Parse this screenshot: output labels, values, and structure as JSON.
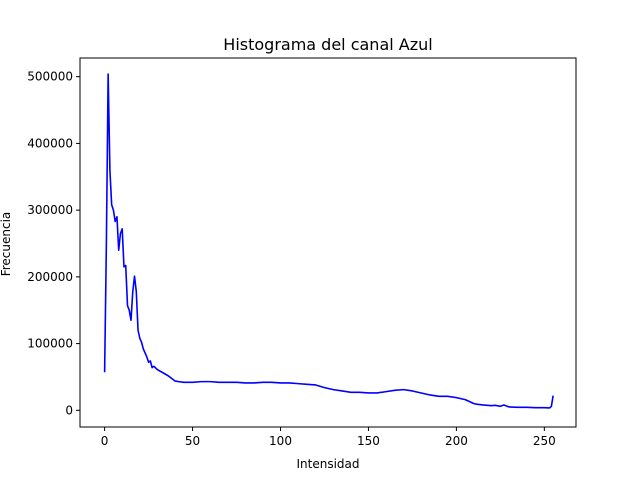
{
  "chart_data": {
    "type": "line",
    "title": "Histograma del canal Azul",
    "xlabel": "Intensidad",
    "ylabel": "Frecuencia",
    "xlim": [
      -14,
      268
    ],
    "ylim": [
      -25000,
      528000
    ],
    "grid": false,
    "xticks": [
      0,
      50,
      100,
      150,
      200,
      250
    ],
    "yticks": [
      0,
      100000,
      200000,
      300000,
      400000,
      500000
    ],
    "xtick_labels": [
      "0",
      "50",
      "100",
      "150",
      "200",
      "250"
    ],
    "ytick_labels": [
      "0",
      "100000",
      "200000",
      "300000",
      "400000",
      "500000"
    ],
    "series": [
      {
        "color": "#0000ff",
        "x": [
          0,
          1,
          2,
          3,
          4,
          5,
          6,
          7,
          8,
          9,
          10,
          11,
          12,
          13,
          14,
          15,
          16,
          17,
          18,
          19,
          20,
          21,
          22,
          23,
          24,
          25,
          26,
          27,
          28,
          30,
          32,
          34,
          36,
          38,
          40,
          42,
          45,
          50,
          55,
          60,
          65,
          70,
          75,
          80,
          85,
          90,
          95,
          100,
          105,
          110,
          115,
          120,
          125,
          130,
          135,
          140,
          145,
          150,
          155,
          160,
          165,
          170,
          175,
          180,
          185,
          190,
          195,
          200,
          205,
          210,
          212,
          215,
          220,
          222,
          225,
          227,
          230,
          235,
          240,
          245,
          250,
          253,
          254,
          255
        ],
        "values": [
          57000,
          250000,
          504000,
          360000,
          308000,
          300000,
          283000,
          290000,
          240000,
          265000,
          272000,
          215000,
          217000,
          157000,
          150000,
          135000,
          178000,
          201000,
          178000,
          120000,
          108000,
          102000,
          92000,
          86000,
          80000,
          72000,
          74000,
          64000,
          66000,
          61000,
          58000,
          55000,
          52000,
          48000,
          44000,
          43000,
          42000,
          42000,
          43000,
          43000,
          42000,
          42000,
          42000,
          41000,
          41000,
          42000,
          42000,
          41000,
          41000,
          40000,
          39000,
          38000,
          34000,
          31000,
          29000,
          27000,
          27000,
          26000,
          26000,
          28000,
          30000,
          31000,
          29000,
          26000,
          23000,
          21000,
          21000,
          19000,
          16000,
          10000,
          9000,
          8000,
          7000,
          7500,
          6000,
          8000,
          5000,
          4500,
          4500,
          4000,
          4000,
          3500,
          6000,
          22000
        ]
      }
    ]
  }
}
